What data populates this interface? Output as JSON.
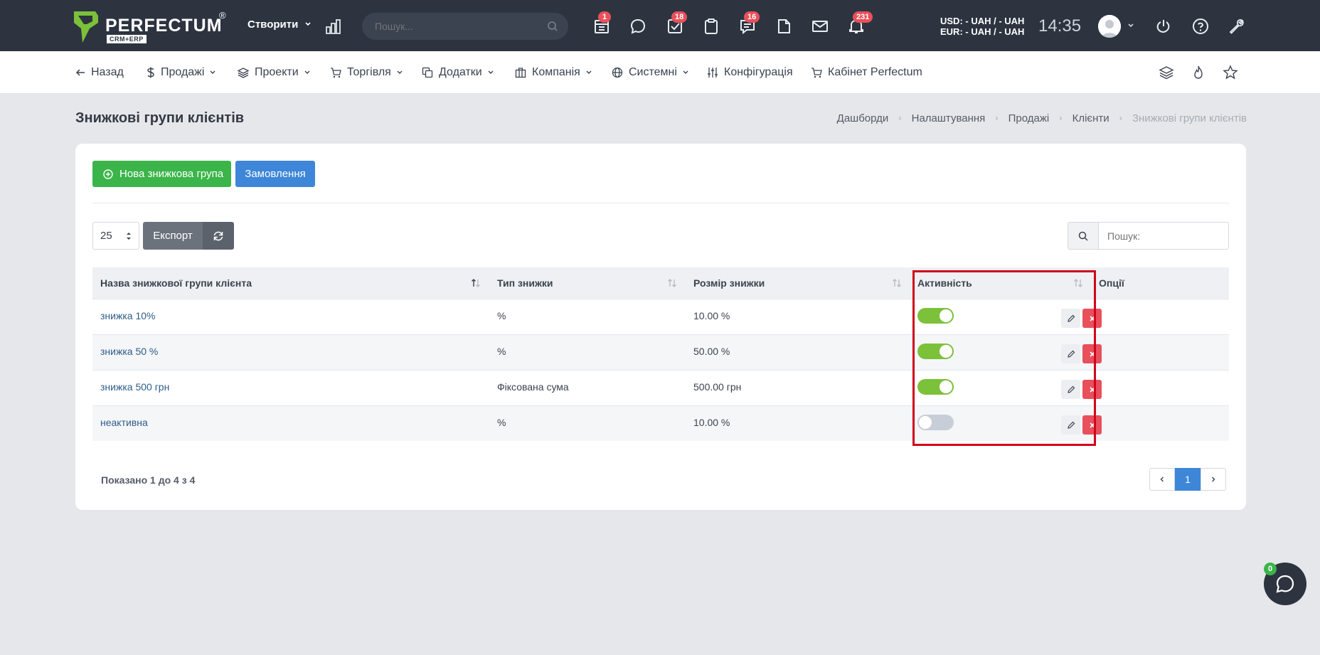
{
  "header": {
    "brand": "PERFECTUM",
    "brand_sub": "CRM+ERP",
    "brand_reg": "®",
    "create_label": "Створити",
    "search_placeholder": "Пошук...",
    "badges": {
      "tasks_calendar": "1",
      "checklist": "18",
      "messages": "16",
      "notifications": "231"
    },
    "currency_usd": "USD: - UAH / - UAH",
    "currency_eur": "EUR: - UAH / - UAH",
    "time": "14:35"
  },
  "nav": {
    "back": "Назад",
    "sales": "Продажі",
    "projects": "Проекти",
    "trade": "Торгівля",
    "addons": "Додатки",
    "company": "Компанія",
    "system": "Системні",
    "config": "Конфігурація",
    "cabinet": "Кабінет Perfectum"
  },
  "page": {
    "title": "Знижкові групи клієнтів",
    "breadcrumb": [
      "Дашборди",
      "Налаштування",
      "Продажі",
      "Клієнти",
      "Знижкові групи клієнтів"
    ]
  },
  "toolbar": {
    "new_group": "Нова знижкова група",
    "orders": "Замовлення",
    "page_size": "25",
    "export": "Експорт",
    "search_placeholder": "Пошук:"
  },
  "table": {
    "columns": [
      "Назва знижкової групи клієнта",
      "Тип знижки",
      "Розмір знижки",
      "Активність",
      "Опції"
    ],
    "rows": [
      {
        "name": "знижка 10%",
        "type": "%",
        "size": "10.00 %",
        "active": true
      },
      {
        "name": "знижка 50 %",
        "type": "%",
        "size": "50.00 %",
        "active": true
      },
      {
        "name": "знижка 500 грн",
        "type": "Фіксована сума",
        "size": "500.00 грн",
        "active": true
      },
      {
        "name": "неактивна",
        "type": "%",
        "size": "10.00 %",
        "active": false
      }
    ]
  },
  "footer": {
    "shown": "Показано 1 до 4 з 4",
    "current_page": "1"
  },
  "chat": {
    "badge": "0"
  }
}
